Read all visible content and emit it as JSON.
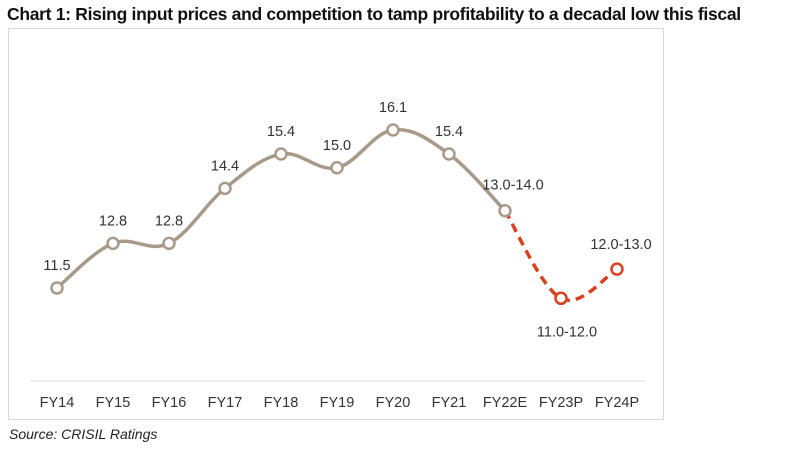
{
  "title": "Chart 1: Rising input prices and competition to tamp profitability to a decadal low this fiscal",
  "source": "Source: CRISIL Ratings",
  "chart_data": {
    "type": "line",
    "categories": [
      "FY14",
      "FY15",
      "FY16",
      "FY17",
      "FY18",
      "FY19",
      "FY20",
      "FY21",
      "FY22E",
      "FY23P",
      "FY24P"
    ],
    "values": [
      11.5,
      12.8,
      12.8,
      14.4,
      15.4,
      15.0,
      16.1,
      15.4,
      13.75,
      11.2,
      12.05
    ],
    "data_labels": [
      "11.5",
      "12.8",
      "12.8",
      "14.4",
      "15.4",
      "15.0",
      "16.1",
      "15.4",
      "13.0-14.0",
      "11.0-12.0",
      "12.0-13.0"
    ],
    "actual_until": "FY22E",
    "projected_from": "FY22E",
    "colors": {
      "actual": "#a89a8a",
      "projected": "#d9401f"
    },
    "grid": false,
    "legend": "none"
  }
}
